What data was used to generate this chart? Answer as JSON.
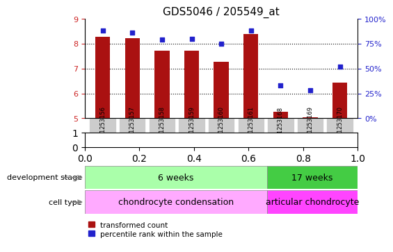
{
  "title": "GDS5046 / 205549_at",
  "samples": [
    "GSM1253156",
    "GSM1253157",
    "GSM1253158",
    "GSM1253159",
    "GSM1253160",
    "GSM1253161",
    "GSM1253168",
    "GSM1253169",
    "GSM1253170"
  ],
  "transformed_count": [
    8.27,
    8.22,
    7.72,
    7.72,
    7.27,
    8.37,
    5.27,
    5.05,
    6.42
  ],
  "percentile_rank": [
    88,
    86,
    79,
    80,
    75,
    88,
    33,
    28,
    52
  ],
  "bar_color": "#AA1111",
  "dot_color": "#2222CC",
  "ylim_left": [
    5,
    9
  ],
  "ylim_right": [
    0,
    100
  ],
  "yticks_left": [
    5,
    6,
    7,
    8,
    9
  ],
  "yticks_right": [
    0,
    25,
    50,
    75,
    100
  ],
  "yticklabels_right": [
    "0%",
    "25%",
    "50%",
    "75%",
    "100%"
  ],
  "grid_color": "black",
  "grid_linestyle": "dotted",
  "grid_yticks": [
    6,
    7,
    8
  ],
  "dev_stage_6w_label": "6 weeks",
  "dev_stage_17w_label": "17 weeks",
  "cell_type_cc_label": "chondrocyte condensation",
  "cell_type_ac_label": "articular chondrocyte",
  "dev_stage_6w_color": "#AAFFAA",
  "dev_stage_17w_color": "#44CC44",
  "cell_type_cc_color": "#FFAAFF",
  "cell_type_ac_color": "#FF44FF",
  "split_index": 6,
  "label_dev_stage": "development stage",
  "label_cell_type": "cell type",
  "legend_red_label": "transformed count",
  "legend_blue_label": "percentile rank within the sample",
  "bar_width": 0.5,
  "plot_bg_color": "#FFFFFF",
  "axis_label_color_left": "#CC2222",
  "axis_label_color_right": "#2222CC"
}
